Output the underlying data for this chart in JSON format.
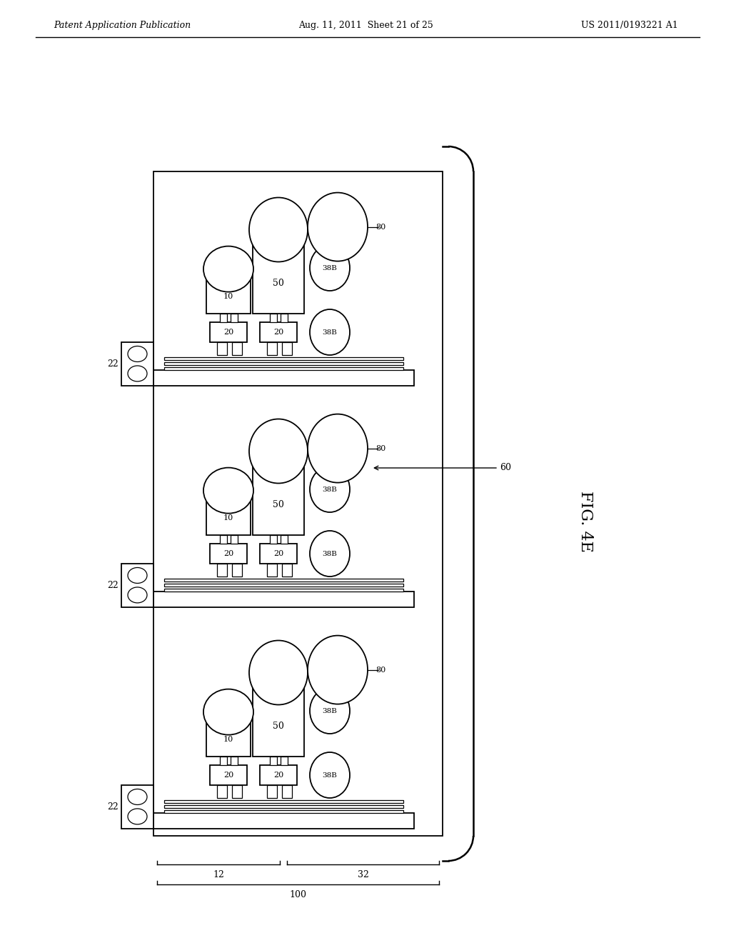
{
  "header_left": "Patent Application Publication",
  "header_mid": "Aug. 11, 2011  Sheet 21 of 25",
  "header_right": "US 2011/0193221 A1",
  "fig_label": "FIG. 4E",
  "bg_color": "#ffffff",
  "line_color": "#000000",
  "label_22": "22",
  "label_20": "20",
  "label_10": "10",
  "label_50": "50",
  "label_38B": "38B",
  "label_80": "80",
  "label_60": "60",
  "label_100": "100",
  "label_12": "12",
  "label_32": "32"
}
